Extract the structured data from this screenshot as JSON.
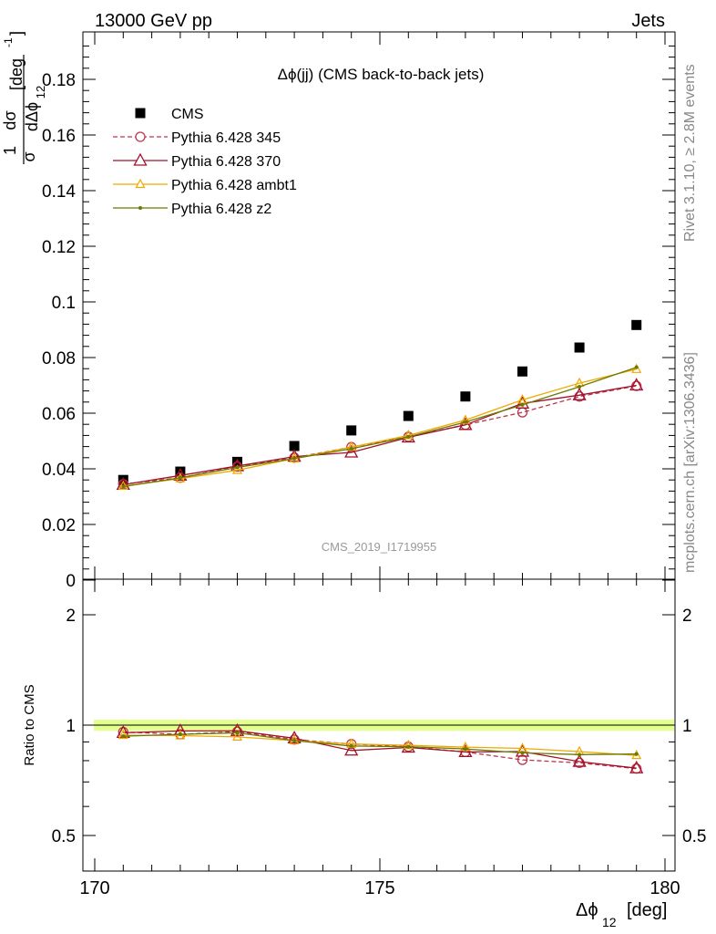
{
  "header": {
    "left": "13000 GeV pp",
    "right": "Jets"
  },
  "side": {
    "rivet": "Rivet 3.1.10, ≥ 2.8M events",
    "mcplots": "mcplots.cern.ch [arXiv:1306.3436]"
  },
  "chart_data": [
    {
      "type": "scatter",
      "title": "Δϕ(jj) (CMS back-to-back jets)",
      "watermark": "CMS_2019_I1719955",
      "ylabel_frac_top": "1",
      "ylabel_frac_bottom": "σ",
      "ylabel_num": "dσ",
      "ylabel_den": "dΔϕ",
      "ylabel_den_sub": "12",
      "ylabel_unit": "[deg",
      "ylabel_unit_sup": "-1",
      "ylabel_unit_close": "]",
      "xlim": [
        170,
        180
      ],
      "ylim": [
        0,
        0.197
      ],
      "yticks": [
        "0",
        "0.02",
        "0.04",
        "0.06",
        "0.08",
        "0.1",
        "0.12",
        "0.14",
        "0.16",
        "0.18"
      ],
      "x": [
        170.5,
        171.5,
        172.5,
        173.5,
        174.5,
        175.5,
        176.5,
        177.5,
        178.5,
        179.5
      ],
      "legend_position": "top-left",
      "grid": false,
      "series": [
        {
          "name": "CMS",
          "marker": "square",
          "color": "#000000",
          "values": [
            0.036,
            0.039,
            0.0425,
            0.0482,
            0.0538,
            0.059,
            0.066,
            0.075,
            0.0836,
            0.0917
          ]
        },
        {
          "name": "Pythia 6.428 345",
          "marker": "circle",
          "line": "dashed",
          "color": "#c0344a",
          "values": [
            0.0345,
            0.0368,
            0.0408,
            0.044,
            0.0478,
            0.0515,
            0.0558,
            0.0603,
            0.066,
            0.0698
          ]
        },
        {
          "name": "Pythia 6.428 370",
          "marker": "triangle",
          "line": "solid",
          "color": "#a0102a",
          "values": [
            0.0343,
            0.0376,
            0.041,
            0.0444,
            0.0459,
            0.0513,
            0.0558,
            0.0635,
            0.0665,
            0.07
          ]
        },
        {
          "name": "Pythia 6.428 ambt1",
          "marker": "triangle-small",
          "line": "solid",
          "color": "#f0a800",
          "values": [
            0.0338,
            0.0365,
            0.0395,
            0.0437,
            0.0478,
            0.052,
            0.0575,
            0.0648,
            0.0708,
            0.0758
          ]
        },
        {
          "name": "Pythia 6.428 z2",
          "marker": "dot",
          "line": "solid",
          "color": "#6b7a00",
          "values": [
            0.0336,
            0.0368,
            0.0405,
            0.0437,
            0.0472,
            0.0515,
            0.0568,
            0.063,
            0.0695,
            0.0765
          ]
        }
      ]
    },
    {
      "type": "scatter",
      "ylabel": "Ratio to CMS",
      "xlabel": "Δϕ",
      "xlabel_sub": "12",
      "xlabel_unit": "[deg]",
      "xlim": [
        170,
        180
      ],
      "ylim": [
        0.4,
        2.3
      ],
      "yscale": "log",
      "yticks": [
        "0.5",
        "1",
        "2"
      ],
      "xticks": [
        "170",
        "175",
        "180"
      ],
      "band_color": "#ccff33",
      "series": [
        {
          "name": "Pythia 6.428 345",
          "values": [
            0.958,
            0.944,
            0.96,
            0.913,
            0.888,
            0.873,
            0.845,
            0.804,
            0.789,
            0.761
          ]
        },
        {
          "name": "Pythia 6.428 370",
          "values": [
            0.953,
            0.964,
            0.965,
            0.921,
            0.853,
            0.869,
            0.845,
            0.847,
            0.795,
            0.763
          ]
        },
        {
          "name": "Pythia 6.428 ambt1",
          "values": [
            0.939,
            0.936,
            0.929,
            0.907,
            0.888,
            0.881,
            0.871,
            0.864,
            0.847,
            0.827
          ]
        },
        {
          "name": "Pythia 6.428 z2",
          "values": [
            0.933,
            0.944,
            0.953,
            0.907,
            0.877,
            0.873,
            0.861,
            0.84,
            0.831,
            0.834
          ]
        }
      ]
    }
  ]
}
